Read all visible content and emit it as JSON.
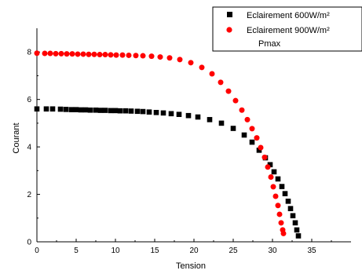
{
  "chart_data": {
    "type": "scatter",
    "title": "",
    "xlabel": "Tension",
    "ylabel": "Courant",
    "xlim": [
      0,
      40
    ],
    "ylim": [
      0,
      9
    ],
    "x_ticks": [
      0,
      5,
      10,
      15,
      20,
      25,
      30,
      35
    ],
    "y_ticks": [
      0,
      2,
      4,
      6,
      8
    ],
    "grid": false,
    "legend_position": "top-right",
    "legend": [
      "Eclairement 600W/m²",
      "Eclairement 900W/m²",
      "Pmax"
    ],
    "series": [
      {
        "name": "Eclairement 600W/m²",
        "color": "#000000",
        "marker": "square",
        "x": [
          0,
          1.2,
          2.0,
          3.0,
          3.7,
          4.4,
          5.0,
          5.6,
          6.2,
          6.8,
          7.5,
          8.1,
          8.7,
          9.4,
          10.0,
          10.6,
          11.3,
          12.0,
          12.8,
          13.5,
          14.3,
          15.2,
          16.1,
          17.1,
          18.1,
          19.3,
          20.5,
          22.0,
          23.5,
          25.0,
          26.4,
          27.4,
          28.3,
          29.1,
          29.7,
          30.2,
          30.7,
          31.2,
          31.6,
          32.0,
          32.3,
          32.6,
          32.9,
          33.1,
          33.3
        ],
        "y": [
          5.6,
          5.6,
          5.6,
          5.59,
          5.58,
          5.57,
          5.57,
          5.56,
          5.56,
          5.55,
          5.55,
          5.54,
          5.54,
          5.53,
          5.53,
          5.52,
          5.52,
          5.51,
          5.5,
          5.49,
          5.47,
          5.45,
          5.43,
          5.4,
          5.37,
          5.32,
          5.26,
          5.15,
          5.0,
          4.78,
          4.5,
          4.2,
          3.86,
          3.54,
          3.25,
          2.95,
          2.65,
          2.33,
          2.03,
          1.71,
          1.4,
          1.1,
          0.8,
          0.5,
          0.25
        ]
      },
      {
        "name": "Eclairement 900W/m²",
        "color": "#ff0000",
        "marker": "circle",
        "x": [
          0,
          1.0,
          1.7,
          2.4,
          3.1,
          3.8,
          4.5,
          5.2,
          5.9,
          6.6,
          7.3,
          8.0,
          8.7,
          9.4,
          10.1,
          10.9,
          11.7,
          12.6,
          13.5,
          14.6,
          15.7,
          16.9,
          18.2,
          19.6,
          21.0,
          22.3,
          23.4,
          24.4,
          25.3,
          26.1,
          26.8,
          27.4,
          28.0,
          28.5,
          29.0,
          29.4,
          29.8,
          30.1,
          30.4,
          30.7,
          30.9,
          31.1,
          31.3,
          31.4
        ],
        "y": [
          7.95,
          7.94,
          7.94,
          7.93,
          7.93,
          7.92,
          7.92,
          7.91,
          7.91,
          7.9,
          7.9,
          7.89,
          7.89,
          7.88,
          7.87,
          7.87,
          7.86,
          7.85,
          7.84,
          7.82,
          7.79,
          7.75,
          7.68,
          7.55,
          7.35,
          7.08,
          6.72,
          6.35,
          5.95,
          5.55,
          5.15,
          4.77,
          4.38,
          3.97,
          3.56,
          3.15,
          2.73,
          2.32,
          1.92,
          1.53,
          1.16,
          0.8,
          0.5,
          0.35
        ]
      }
    ]
  }
}
